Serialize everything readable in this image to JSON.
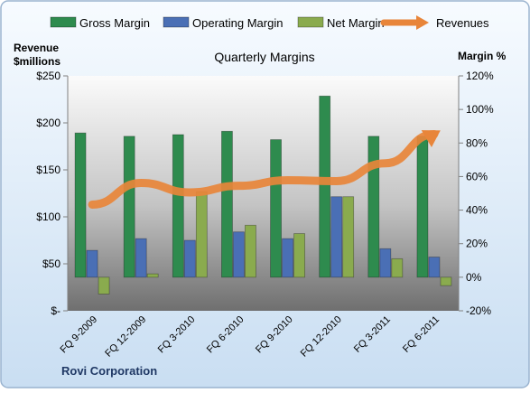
{
  "chart_data": {
    "type": "bar",
    "title": "Quarterly Margins",
    "categories": [
      "FQ 9-2009",
      "FQ 12-2009",
      "FQ 3-2010",
      "FQ 6-2010",
      "FQ 9-2010",
      "FQ 12-2010",
      "FQ 3-2011",
      "FQ 6-2011"
    ],
    "series": [
      {
        "name": "Gross Margin",
        "axis": "right",
        "kind": "bar",
        "color": "#2e8b4e",
        "values": [
          86,
          84,
          85,
          87,
          82,
          108,
          84,
          84
        ]
      },
      {
        "name": "Operating Margin",
        "axis": "right",
        "kind": "bar",
        "color": "#4a6fb5",
        "values": [
          16,
          23,
          22,
          27,
          23,
          48,
          17,
          12
        ]
      },
      {
        "name": "Net Margin",
        "axis": "right",
        "kind": "bar",
        "color": "#8aab4e",
        "values": [
          -10,
          2,
          51,
          31,
          26,
          48,
          11,
          -5
        ]
      },
      {
        "name": "Revenues",
        "axis": "left",
        "kind": "line",
        "color": "#e8853a",
        "values": [
          113,
          136,
          126,
          133,
          139,
          138,
          157,
          188
        ]
      }
    ],
    "y_left": {
      "label_line1": "Revenue",
      "label_line2": "$millions",
      "min": 0,
      "max": 250,
      "ticks": [
        0,
        50,
        100,
        150,
        200,
        250
      ],
      "tick_labels": [
        "$-",
        "$50",
        "$100",
        "$150",
        "$200",
        "$250"
      ]
    },
    "y_right": {
      "label": "Margin %",
      "min": -20,
      "max": 120,
      "ticks": [
        -20,
        0,
        20,
        40,
        60,
        80,
        100,
        120
      ],
      "tick_labels": [
        "-20%",
        "0%",
        "20%",
        "40%",
        "60%",
        "80%",
        "100%",
        "120%"
      ]
    },
    "legend_position": "top",
    "grid": false,
    "footer": "Rovi Corporation"
  }
}
